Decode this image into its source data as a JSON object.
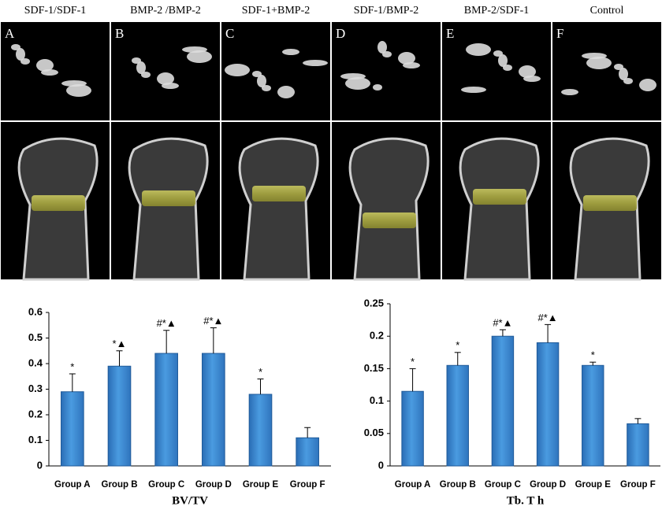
{
  "image_panels": {
    "headers": [
      "SDF-1/SDF-1",
      "BMP-2 /BMP-2",
      "SDF-1+BMP-2",
      "SDF-1/BMP-2",
      "BMP-2/SDF-1",
      "Control"
    ],
    "letters": [
      "A",
      "B",
      "C",
      "D",
      "E",
      "F"
    ]
  },
  "chart_data": [
    {
      "type": "bar",
      "xlabel": "BV/TV",
      "categories": [
        "Group A",
        "Group B",
        "Group C",
        "Group D",
        "Group E",
        "Group F"
      ],
      "values": [
        0.29,
        0.39,
        0.44,
        0.44,
        0.28,
        0.11
      ],
      "errors": [
        0.07,
        0.06,
        0.09,
        0.1,
        0.06,
        0.04
      ],
      "markers": [
        "*",
        "*▲",
        "#*▲",
        "#*▲",
        "*",
        null
      ],
      "color": "#3a87d0",
      "ylim": [
        0,
        0.6
      ],
      "yticks": [
        0,
        0.1,
        0.2,
        0.3,
        0.4,
        0.5,
        0.6
      ],
      "grid": false
    },
    {
      "type": "bar",
      "xlabel": "Tb. T h",
      "categories": [
        "Group A",
        "Group B",
        "Group C",
        "Group D",
        "Group E",
        "Group F"
      ],
      "values": [
        0.115,
        0.155,
        0.2,
        0.19,
        0.155,
        0.065
      ],
      "errors": [
        0.035,
        0.02,
        0.01,
        0.028,
        0.005,
        0.008
      ],
      "markers": [
        "*",
        "*",
        "#*▲",
        "#*▲",
        "*",
        null
      ],
      "color": "#3a87d0",
      "ylim": [
        0,
        0.25
      ],
      "yticks": [
        0,
        0.05,
        0.1,
        0.15,
        0.2,
        0.25
      ],
      "grid": false
    }
  ]
}
